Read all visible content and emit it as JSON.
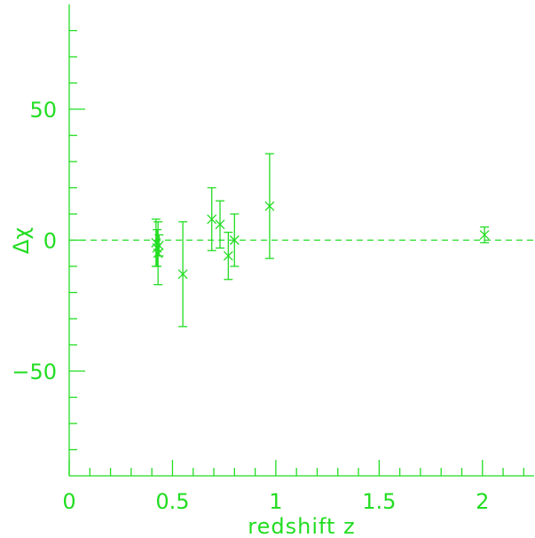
{
  "chart_data": {
    "type": "scatter",
    "title": "",
    "xlabel": "redshift z",
    "ylabel": "Δχ",
    "xlim": [
      0,
      2.25
    ],
    "ylim": [
      -90,
      90
    ],
    "xticks": [
      0,
      0.5,
      1,
      1.5,
      2
    ],
    "xtick_labels": [
      "0",
      "0.5",
      "1",
      "1.5",
      "2"
    ],
    "yticks": [
      -50,
      0,
      50
    ],
    "ytick_labels": [
      "−50",
      "0",
      "50"
    ],
    "reference_line": {
      "y": 0,
      "style": "dashed"
    },
    "grid": false,
    "legend": "none",
    "color": "#22dd22",
    "points": [
      {
        "x": 0.42,
        "y": -1,
        "err": 9
      },
      {
        "x": 0.425,
        "y": -3,
        "err": 7
      },
      {
        "x": 0.43,
        "y": -5,
        "err": 12
      },
      {
        "x": 0.435,
        "y": -2,
        "err": 4
      },
      {
        "x": 0.55,
        "y": -13,
        "err": 20
      },
      {
        "x": 0.69,
        "y": 8,
        "err": 12
      },
      {
        "x": 0.73,
        "y": 6,
        "err": 9
      },
      {
        "x": 0.77,
        "y": -6,
        "err": 9
      },
      {
        "x": 0.8,
        "y": 0,
        "err": 10
      },
      {
        "x": 0.97,
        "y": 13,
        "err": 20
      },
      {
        "x": 2.01,
        "y": 2,
        "err": 3
      }
    ]
  }
}
